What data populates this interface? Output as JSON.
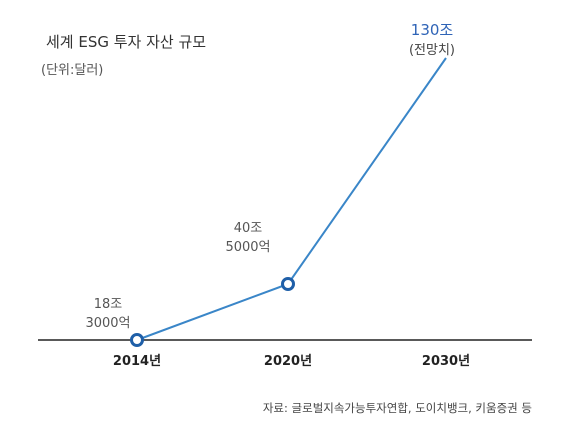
{
  "chart_data": {
    "type": "line",
    "title": "세계 ESG 투자 자산 규모",
    "subtitle": "(단위:달러)",
    "source": "자료: 글로벌지속가능투자연합, 도이치뱅크, 키움증권 등",
    "categories": [
      "2014년",
      "2020년",
      "2030년"
    ],
    "values": [
      18.3,
      40.5,
      130
    ],
    "value_labels": [
      {
        "line1": "18조",
        "line2": "3000억"
      },
      {
        "line1": "40조",
        "line2": "5000억"
      },
      {
        "line1": "130조",
        "line2": "(전망치)"
      }
    ],
    "markers": [
      true,
      true,
      false
    ],
    "grid": false,
    "legend": "none"
  },
  "colors": {
    "line": "#3a86c8",
    "marker_stroke": "#1f5fa8",
    "projection_label": "#2f64b7",
    "label": "#555555",
    "axis": "#222222",
    "tick": "#222222"
  }
}
